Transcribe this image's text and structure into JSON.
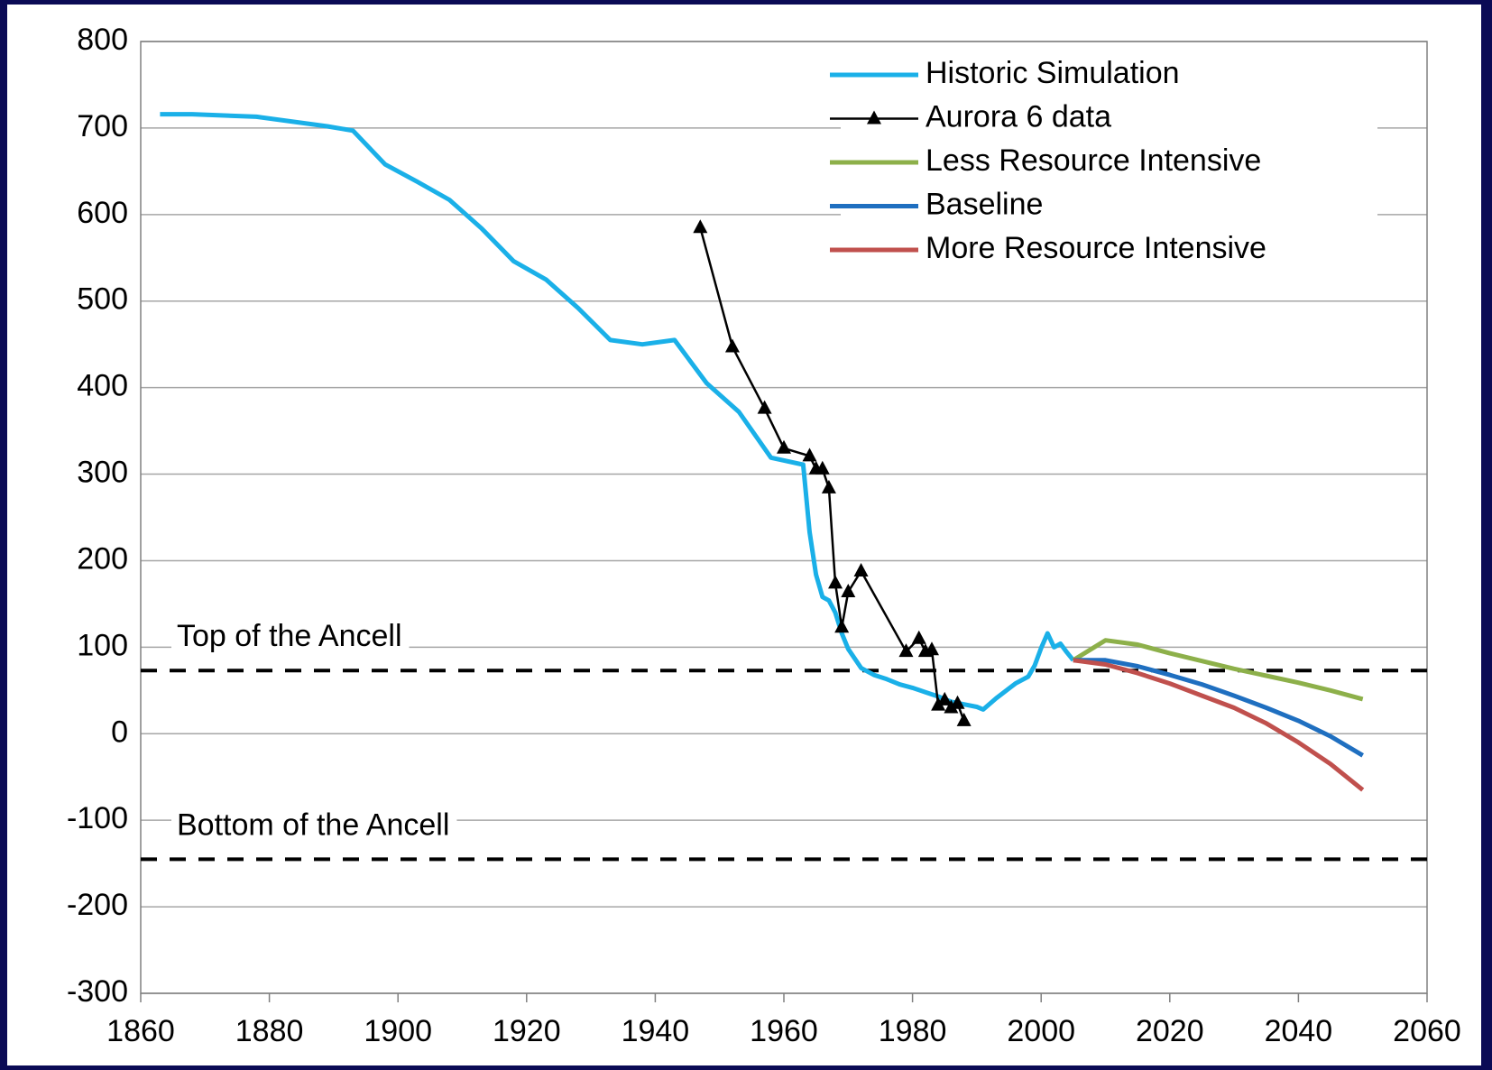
{
  "chart_data": {
    "type": "line",
    "xlim": [
      1860,
      2060
    ],
    "xticks": [
      1860,
      1880,
      1900,
      1920,
      1940,
      1960,
      1980,
      2000,
      2020,
      2040,
      2060
    ],
    "ylim": [
      -300,
      800
    ],
    "yticks": [
      -300,
      -200,
      -100,
      0,
      100,
      200,
      300,
      400,
      500,
      600,
      700,
      800
    ],
    "grid": true,
    "legend": "top-right",
    "series": [
      {
        "name": "Historic Simulation",
        "color": "#1ab0e8",
        "x": [
          1863,
          1868,
          1878,
          1889,
          1893,
          1898,
          1903,
          1908,
          1913,
          1918,
          1923,
          1928,
          1933,
          1938,
          1943,
          1948,
          1953,
          1958,
          1963,
          1964,
          1965,
          1966,
          1967,
          1968,
          1969,
          1970,
          1972,
          1974,
          1976,
          1978,
          1980,
          1982,
          1984,
          1986,
          1988,
          1990,
          1991,
          1993,
          1996,
          1998,
          1999,
          2000,
          2001,
          2002,
          2003,
          2004,
          2005
        ],
        "values": [
          716,
          716,
          713,
          702,
          697,
          658,
          638,
          617,
          584,
          546,
          525,
          492,
          455,
          450,
          455,
          405,
          372,
          319,
          311,
          233,
          184,
          158,
          154,
          140,
          116,
          98,
          76,
          68,
          63,
          57,
          53,
          48,
          43,
          37,
          34,
          31,
          28,
          41,
          58,
          66,
          79,
          99,
          116,
          100,
          104,
          94,
          85
        ]
      },
      {
        "name": "Aurora 6 data",
        "color": "#000000",
        "marker": "triangle",
        "x": [
          1947,
          1952,
          1957,
          1960,
          1964,
          1965,
          1966,
          1967,
          1968,
          1969,
          1970,
          1972,
          1979,
          1981,
          1982,
          1983,
          1984,
          1985,
          1986,
          1987,
          1988
        ],
        "values": [
          585,
          447,
          376,
          330,
          321,
          306,
          306,
          284,
          174,
          123,
          164,
          188,
          95,
          110,
          95,
          97,
          33,
          39,
          30,
          35,
          15
        ]
      },
      {
        "name": "Less Resource Intensive",
        "color": "#8db04a",
        "x": [
          2005,
          2010,
          2015,
          2020,
          2025,
          2030,
          2035,
          2040,
          2045,
          2050
        ],
        "values": [
          85,
          108,
          103,
          93,
          84,
          75,
          67,
          59,
          50,
          40
        ]
      },
      {
        "name": "Baseline",
        "color": "#1f6fc0",
        "x": [
          2005,
          2010,
          2015,
          2020,
          2025,
          2030,
          2035,
          2040,
          2045,
          2050
        ],
        "values": [
          85,
          85,
          78,
          68,
          57,
          44,
          30,
          15,
          -3,
          -25
        ]
      },
      {
        "name": "More Resource Intensive",
        "color": "#c0504d",
        "x": [
          2005,
          2010,
          2015,
          2020,
          2025,
          2030,
          2035,
          2040,
          2045,
          2050
        ],
        "values": [
          85,
          80,
          70,
          58,
          44,
          30,
          12,
          -10,
          -35,
          -65
        ]
      }
    ],
    "reference_lines": [
      {
        "label": "Top of the Ancell",
        "value": 73
      },
      {
        "label": "Bottom of the Ancell",
        "value": -145
      }
    ]
  }
}
